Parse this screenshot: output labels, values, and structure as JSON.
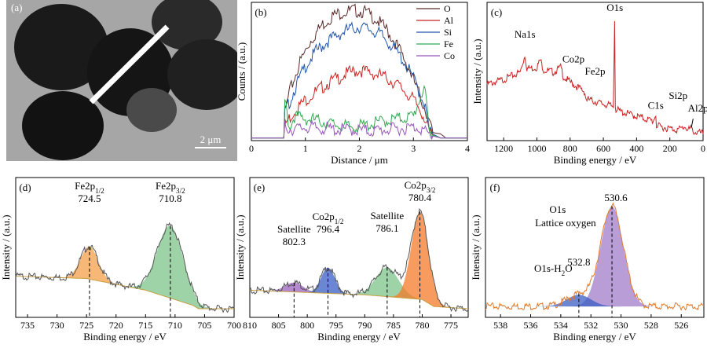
{
  "panels": {
    "a": {
      "label": "(a)",
      "scale_bar": "2 μm"
    }
  },
  "chart_data": [
    {
      "panel": "(b)",
      "type": "line",
      "xlabel": "Distance / μm",
      "ylabel": "Counts / (a.u.)",
      "xlim": [
        0,
        4
      ],
      "x_ticks": [
        "0",
        "1",
        "2",
        "3",
        "4"
      ],
      "legend_position": "top-right",
      "series": [
        {
          "name": "O",
          "color": "#5a2a2a",
          "x": [
            0,
            0.6,
            0.62,
            0.7,
            0.9,
            1.1,
            1.3,
            1.5,
            1.7,
            1.9,
            2.1,
            2.3,
            2.5,
            2.7,
            2.9,
            3.1,
            3.25,
            3.35,
            3.5,
            3.6,
            4
          ],
          "y": [
            0.02,
            0.02,
            0.2,
            0.35,
            0.58,
            0.74,
            0.85,
            0.92,
            0.95,
            0.96,
            0.95,
            0.9,
            0.82,
            0.7,
            0.55,
            0.35,
            0.2,
            0.06,
            0.05,
            0.02,
            0.02
          ]
        },
        {
          "name": "Al",
          "color": "#cc2222",
          "x": [
            0,
            0.6,
            0.62,
            0.8,
            1.0,
            1.2,
            1.4,
            1.6,
            1.8,
            2.0,
            2.2,
            2.4,
            2.6,
            2.8,
            3.0,
            3.2,
            3.3,
            3.5,
            4
          ],
          "y": [
            0.02,
            0.02,
            0.12,
            0.22,
            0.3,
            0.36,
            0.42,
            0.46,
            0.5,
            0.52,
            0.5,
            0.48,
            0.44,
            0.38,
            0.3,
            0.18,
            0.05,
            0.02,
            0.02
          ]
        },
        {
          "name": "Si",
          "color": "#2255aa",
          "x": [
            0,
            0.6,
            0.62,
            0.8,
            1.0,
            1.2,
            1.4,
            1.6,
            1.8,
            2.0,
            2.2,
            2.4,
            2.6,
            2.8,
            3.0,
            3.2,
            3.3,
            3.5,
            4
          ],
          "y": [
            0.02,
            0.02,
            0.2,
            0.38,
            0.55,
            0.66,
            0.73,
            0.78,
            0.82,
            0.84,
            0.82,
            0.78,
            0.7,
            0.6,
            0.46,
            0.28,
            0.06,
            0.02,
            0.02
          ]
        },
        {
          "name": "Fe",
          "color": "#33aa55",
          "x": [
            0,
            0.6,
            0.62,
            0.7,
            0.8,
            1.0,
            1.2,
            1.5,
            1.8,
            2.1,
            2.4,
            2.7,
            3.0,
            3.2,
            3.3,
            3.5,
            4
          ],
          "y": [
            0.02,
            0.02,
            0.3,
            0.1,
            0.18,
            0.16,
            0.15,
            0.12,
            0.1,
            0.11,
            0.14,
            0.16,
            0.18,
            0.4,
            0.05,
            0.02,
            0.02
          ]
        },
        {
          "name": "Co",
          "color": "#9955bb",
          "x": [
            0,
            0.6,
            0.62,
            0.8,
            1.0,
            1.3,
            1.6,
            1.9,
            2.2,
            2.5,
            2.8,
            3.1,
            3.3,
            3.5,
            4
          ],
          "y": [
            0.02,
            0.02,
            0.1,
            0.08,
            0.1,
            0.09,
            0.08,
            0.08,
            0.07,
            0.08,
            0.09,
            0.1,
            0.04,
            0.02,
            0.02
          ]
        }
      ]
    },
    {
      "panel": "(c)",
      "type": "line",
      "xlabel": "Binding energy / eV",
      "ylabel": "Intensity / (a.u.)",
      "xlim": [
        1300,
        0
      ],
      "x_ticks": [
        "1200",
        "1000",
        "800",
        "600",
        "400",
        "200",
        "0"
      ],
      "color": "#cc2222",
      "x": [
        1300,
        1200,
        1100,
        1072,
        1060,
        1000,
        980,
        960,
        900,
        855,
        840,
        800,
        780,
        712,
        705,
        650,
        600,
        540,
        532,
        528,
        500,
        400,
        300,
        285,
        280,
        200,
        150,
        102,
        100,
        75,
        50,
        0
      ],
      "y": [
        0.42,
        0.46,
        0.52,
        0.66,
        0.55,
        0.56,
        0.62,
        0.54,
        0.52,
        0.56,
        0.48,
        0.44,
        0.42,
        0.36,
        0.3,
        0.28,
        0.26,
        0.24,
        0.98,
        0.22,
        0.2,
        0.16,
        0.12,
        0.18,
        0.08,
        0.06,
        0.05,
        0.08,
        0.04,
        0.06,
        0.03,
        0.02
      ],
      "annotations": [
        {
          "text": "Na1s",
          "x": 1072
        },
        {
          "text": "Co2p",
          "x": 780
        },
        {
          "text": "Fe2p",
          "x": 712
        },
        {
          "text": "O1s",
          "x": 531
        },
        {
          "text": "Si2p",
          "x": 102
        },
        {
          "text": "C1s",
          "x": 285
        },
        {
          "text": "Al2p",
          "x": 74
        }
      ]
    },
    {
      "panel": "(d)",
      "type": "area",
      "xlabel": "Binding energy / eV",
      "ylabel": "Intensity / (a.u.)",
      "xlim": [
        737,
        700
      ],
      "x_ticks": [
        "735",
        "730",
        "725",
        "720",
        "715",
        "710",
        "705",
        "700"
      ],
      "annotations": [
        {
          "text": "Fe2p",
          "sub": "1/2",
          "value": "724.5",
          "x": 724.5
        },
        {
          "text": "Fe2p",
          "sub": "3/2",
          "value": "710.8",
          "x": 710.8
        }
      ],
      "peaks": [
        {
          "center": 724.5,
          "height": 0.28,
          "width": 1.5,
          "color": "#f4a04a"
        },
        {
          "center": 710.8,
          "height": 0.62,
          "width": 2.2,
          "color": "#7cc48a"
        }
      ],
      "baseline": {
        "x": [
          737,
          725,
          715,
          707,
          706,
          700
        ],
        "y": [
          0.3,
          0.28,
          0.18,
          0.05,
          0.02,
          0.02
        ]
      }
    },
    {
      "panel": "(e)",
      "type": "area",
      "xlabel": "Binding energy / eV",
      "ylabel": "Intensity / (a.u.)",
      "xlim": [
        810,
        772
      ],
      "x_ticks": [
        "810",
        "805",
        "800",
        "795",
        "790",
        "785",
        "780",
        "775"
      ],
      "annotations": [
        {
          "text": "Satellite",
          "value": "802.3",
          "x": 802.3
        },
        {
          "text": "Co2p",
          "sub": "1/2",
          "value": "796.4",
          "x": 796.4
        },
        {
          "text": "Satellite",
          "value": "786.1",
          "x": 786.1
        },
        {
          "text": "Co2p",
          "sub": "3/2",
          "value": "780.4",
          "x": 780.4
        }
      ],
      "peaks": [
        {
          "center": 802.3,
          "height": 0.08,
          "width": 1.6,
          "color": "#9b62c0"
        },
        {
          "center": 796.4,
          "height": 0.22,
          "width": 1.2,
          "color": "#3a5fc4"
        },
        {
          "center": 786.1,
          "height": 0.25,
          "width": 2.0,
          "color": "#7cc48a"
        },
        {
          "center": 780.4,
          "height": 0.75,
          "width": 1.5,
          "color": "#f47a2a"
        }
      ],
      "baseline": {
        "x": [
          810,
          800,
          790,
          780,
          778,
          772
        ],
        "y": [
          0.18,
          0.16,
          0.14,
          0.1,
          0.04,
          0.02
        ]
      }
    },
    {
      "panel": "(f)",
      "type": "area",
      "xlabel": "Binding energy / eV",
      "ylabel": "Intensity / (a.u.)",
      "xlim": [
        539,
        524.5
      ],
      "x_ticks": [
        "538",
        "536",
        "534",
        "532",
        "530",
        "528",
        "526"
      ],
      "annotations": [
        {
          "text": "O1s",
          "x": 531.6
        },
        {
          "text": "Lattice oxygen",
          "x": 531.6
        },
        {
          "text": "530.6",
          "x": 530.6
        },
        {
          "text": "O1s-H",
          "sub": "2",
          "tail": "O",
          "x": 534.5
        },
        {
          "text": "532.8",
          "x": 532.8
        }
      ],
      "peaks": [
        {
          "center": 530.6,
          "height": 0.86,
          "width": 0.75,
          "color": "#a07cc8"
        },
        {
          "center": 532.8,
          "height": 0.1,
          "width": 0.8,
          "color": "#3a5fc4"
        }
      ],
      "envelope_color": "#e07a2a"
    }
  ]
}
